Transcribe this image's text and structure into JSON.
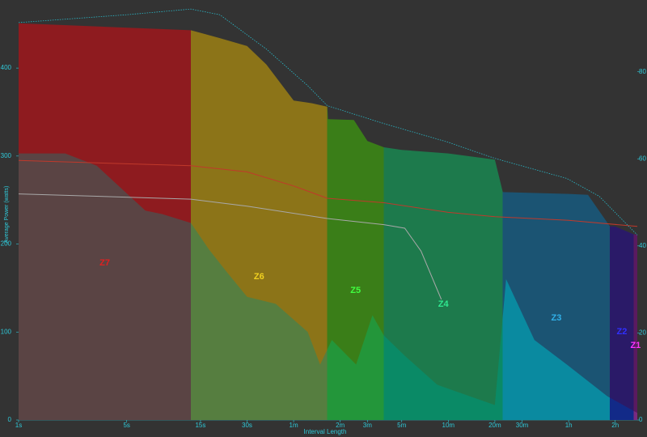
{
  "chart_data": {
    "type": "power-duration",
    "x_label": "Interval Length",
    "y_label": "Average Power (watts)",
    "xscale": "log",
    "xlim": [
      1,
      10000
    ],
    "xticks": [
      {
        "value": 1,
        "label": "1s"
      },
      {
        "value": 5,
        "label": "5s"
      },
      {
        "value": 15,
        "label": "15s"
      },
      {
        "value": 30,
        "label": "30s"
      },
      {
        "value": 60,
        "label": "1m"
      },
      {
        "value": 120,
        "label": "2m"
      },
      {
        "value": 180,
        "label": "3m"
      },
      {
        "value": 300,
        "label": "5m"
      },
      {
        "value": 600,
        "label": "10m"
      },
      {
        "value": 1200,
        "label": "20m"
      },
      {
        "value": 1800,
        "label": "30m"
      },
      {
        "value": 3600,
        "label": "1h"
      },
      {
        "value": 7200,
        "label": "2h"
      }
    ],
    "ylim": [
      0,
      470
    ],
    "yticks": [
      0,
      100,
      200,
      300,
      400
    ],
    "y2lim": [
      0,
      95
    ],
    "y2ticks": [
      0,
      20,
      40,
      60,
      80
    ],
    "zones": [
      {
        "name": "Z7",
        "from": 1,
        "to": 13,
        "fill": "#8e1b1f",
        "overlay_fill": "#5a4444",
        "label_color": "#e0201f"
      },
      {
        "name": "Z6",
        "from": 13,
        "to": 99,
        "fill": "#8c7418",
        "overlay_fill": "#567e40",
        "label_color": "#f0d020"
      },
      {
        "name": "Z5",
        "from": 99,
        "to": 230,
        "fill": "#3a7e18",
        "overlay_fill": "#23963a",
        "label_color": "#40ff40"
      },
      {
        "name": "Z4",
        "from": 230,
        "to": 1350,
        "fill": "#1d7a4c",
        "overlay_fill": "#0a8a66",
        "label_color": "#30e890"
      },
      {
        "name": "Z3",
        "from": 1350,
        "to": 6650,
        "fill": "#1b5473",
        "overlay_fill": "#0a8aa0",
        "label_color": "#30b0e8"
      },
      {
        "name": "Z2",
        "from": 6650,
        "to": 9500,
        "fill": "#2a1a68",
        "overlay_fill": "#122a88",
        "label_color": "#3030ff"
      },
      {
        "name": "Z1",
        "from": 9500,
        "to": 10000,
        "fill": "#5a1a60",
        "overlay_fill": "#7a2a80",
        "label_color": "#ff30ff"
      }
    ],
    "series": [
      {
        "style": "zone-area",
        "x": [
          1,
          13,
          20,
          30,
          40,
          60,
          79,
          99,
          100,
          147,
          180,
          230,
          300,
          600,
          1200,
          1350,
          3600,
          4800,
          6650,
          7200,
          9500,
          10000
        ],
        "values": [
          451,
          443,
          434,
          425,
          404,
          363,
          360,
          356,
          342,
          341,
          317,
          310,
          307,
          303,
          296,
          259,
          257,
          256,
          220,
          220,
          211,
          211
        ]
      },
      {
        "style": "overlay-area",
        "x": [
          1,
          2,
          3.2,
          6.6,
          8.5,
          13,
          17,
          22,
          30,
          46,
          74,
          89,
          106,
          152,
          194,
          230,
          314,
          509,
          824,
          1200,
          1419,
          2162,
          3505,
          6400,
          10000
        ],
        "values": [
          303,
          303,
          289,
          238,
          234,
          224,
          194,
          169,
          140,
          132,
          100,
          63,
          91,
          63,
          119,
          96,
          73,
          40,
          27,
          17,
          160,
          91,
          63,
          27,
          8
        ]
      },
      {
        "style": "line",
        "color": "#c0392b",
        "x": [
          1,
          13,
          30,
          60,
          99,
          230,
          600,
          1200,
          3600,
          10000
        ],
        "values": [
          295,
          289,
          282,
          266,
          252,
          247,
          236,
          231,
          227,
          220
        ]
      },
      {
        "style": "line",
        "color": "#a8a8a8",
        "x": [
          1,
          13,
          30,
          99,
          230,
          314,
          400,
          541
        ],
        "values": [
          257,
          251,
          243,
          229,
          222,
          218,
          192,
          137
        ]
      },
      {
        "style": "dotted",
        "color": "#2ab8c8",
        "axis": "y2",
        "x": [
          1,
          5,
          13,
          20,
          40,
          74,
          99,
          230,
          600,
          1200,
          3505,
          5675,
          10000
        ],
        "values": [
          91.3,
          93.1,
          94.4,
          93.1,
          85.2,
          76.8,
          72.2,
          68.1,
          63.8,
          60.1,
          55.5,
          51.4,
          42.5
        ]
      }
    ]
  }
}
